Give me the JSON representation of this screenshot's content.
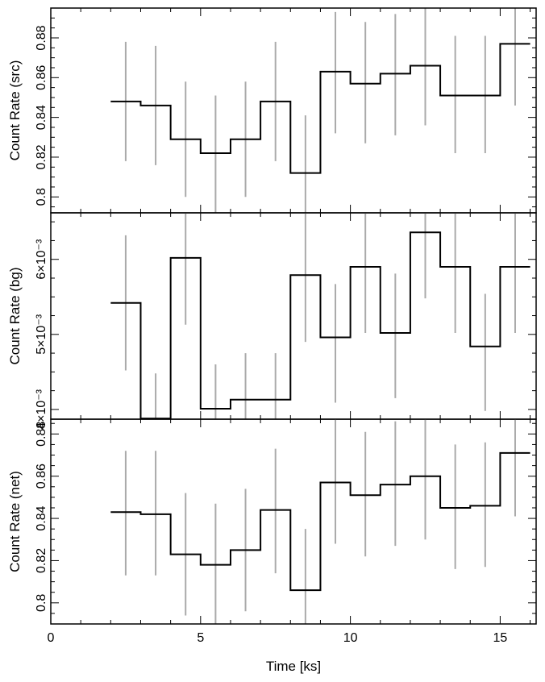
{
  "chart_data": {
    "type": "line",
    "step": true,
    "xlabel": "Time [ks]",
    "xlim": [
      0,
      16.2
    ],
    "xticks": [
      0,
      5,
      10,
      15
    ],
    "bin_edges": [
      2,
      3,
      4,
      5,
      6,
      7,
      8,
      9,
      10,
      11,
      12,
      13,
      14,
      15,
      16
    ],
    "bin_centers": [
      2.5,
      3.5,
      4.5,
      5.5,
      6.5,
      7.5,
      8.5,
      9.5,
      10.5,
      11.5,
      12.5,
      13.5,
      14.5,
      15.5
    ],
    "error_color": "#aaaaaa",
    "line_color": "#000000",
    "panels": [
      {
        "ylabel": "Count Rate (src)",
        "ylim": [
          0.792,
          0.895
        ],
        "yticks": [
          0.8,
          0.82,
          0.84,
          0.86,
          0.88
        ],
        "ytick_labels": [
          "0.8",
          "0.82",
          "0.84",
          "0.86",
          "0.88"
        ],
        "values": [
          0.848,
          0.846,
          0.829,
          0.822,
          0.829,
          0.848,
          0.812,
          0.863,
          0.857,
          0.862,
          0.866,
          0.851,
          0.851,
          0.877
        ],
        "err_lo": [
          0.818,
          0.816,
          0.8,
          0.792,
          0.8,
          0.818,
          0.792,
          0.832,
          0.827,
          0.831,
          0.836,
          0.822,
          0.822,
          0.846
        ],
        "err_hi": [
          0.878,
          0.876,
          0.858,
          0.851,
          0.858,
          0.878,
          0.841,
          0.893,
          0.888,
          0.892,
          0.895,
          0.881,
          0.881,
          0.895
        ]
      },
      {
        "ylabel": "Count Rate (bg)",
        "ylim": [
          0.00387,
          0.00662
        ],
        "yticks": [
          0.004,
          0.005,
          0.006
        ],
        "ytick_labels": [
          "4×10⁻³",
          "5×10⁻³",
          "6×10⁻³"
        ],
        "values": [
          0.00542,
          0.00388,
          0.00602,
          0.00401,
          0.00413,
          0.00413,
          0.00579,
          0.00496,
          0.0059,
          0.00502,
          0.00636,
          0.0059,
          0.00484,
          0.0059
        ],
        "err_lo": [
          0.00452,
          0.00387,
          0.00513,
          0.00387,
          0.00387,
          0.00387,
          0.0049,
          0.00409,
          0.00502,
          0.00415,
          0.00548,
          0.00502,
          0.00398,
          0.00502
        ],
        "err_hi": [
          0.00632,
          0.00448,
          0.00662,
          0.0046,
          0.00475,
          0.00475,
          0.00662,
          0.00567,
          0.00662,
          0.00581,
          0.00662,
          0.00662,
          0.00554,
          0.00662
        ]
      },
      {
        "ylabel": "Count Rate (net)",
        "ylim": [
          0.79,
          0.887
        ],
        "yticks": [
          0.8,
          0.82,
          0.84,
          0.86,
          0.88
        ],
        "ytick_labels": [
          "0.8",
          "0.82",
          "0.84",
          "0.86",
          "0.88"
        ],
        "values": [
          0.843,
          0.842,
          0.823,
          0.818,
          0.825,
          0.844,
          0.806,
          0.857,
          0.851,
          0.856,
          0.86,
          0.845,
          0.846,
          0.871
        ],
        "err_lo": [
          0.813,
          0.813,
          0.794,
          0.79,
          0.796,
          0.814,
          0.79,
          0.828,
          0.822,
          0.827,
          0.83,
          0.816,
          0.817,
          0.841
        ],
        "err_hi": [
          0.872,
          0.872,
          0.852,
          0.847,
          0.854,
          0.873,
          0.835,
          0.887,
          0.881,
          0.886,
          0.887,
          0.875,
          0.876,
          0.887
        ]
      }
    ]
  }
}
